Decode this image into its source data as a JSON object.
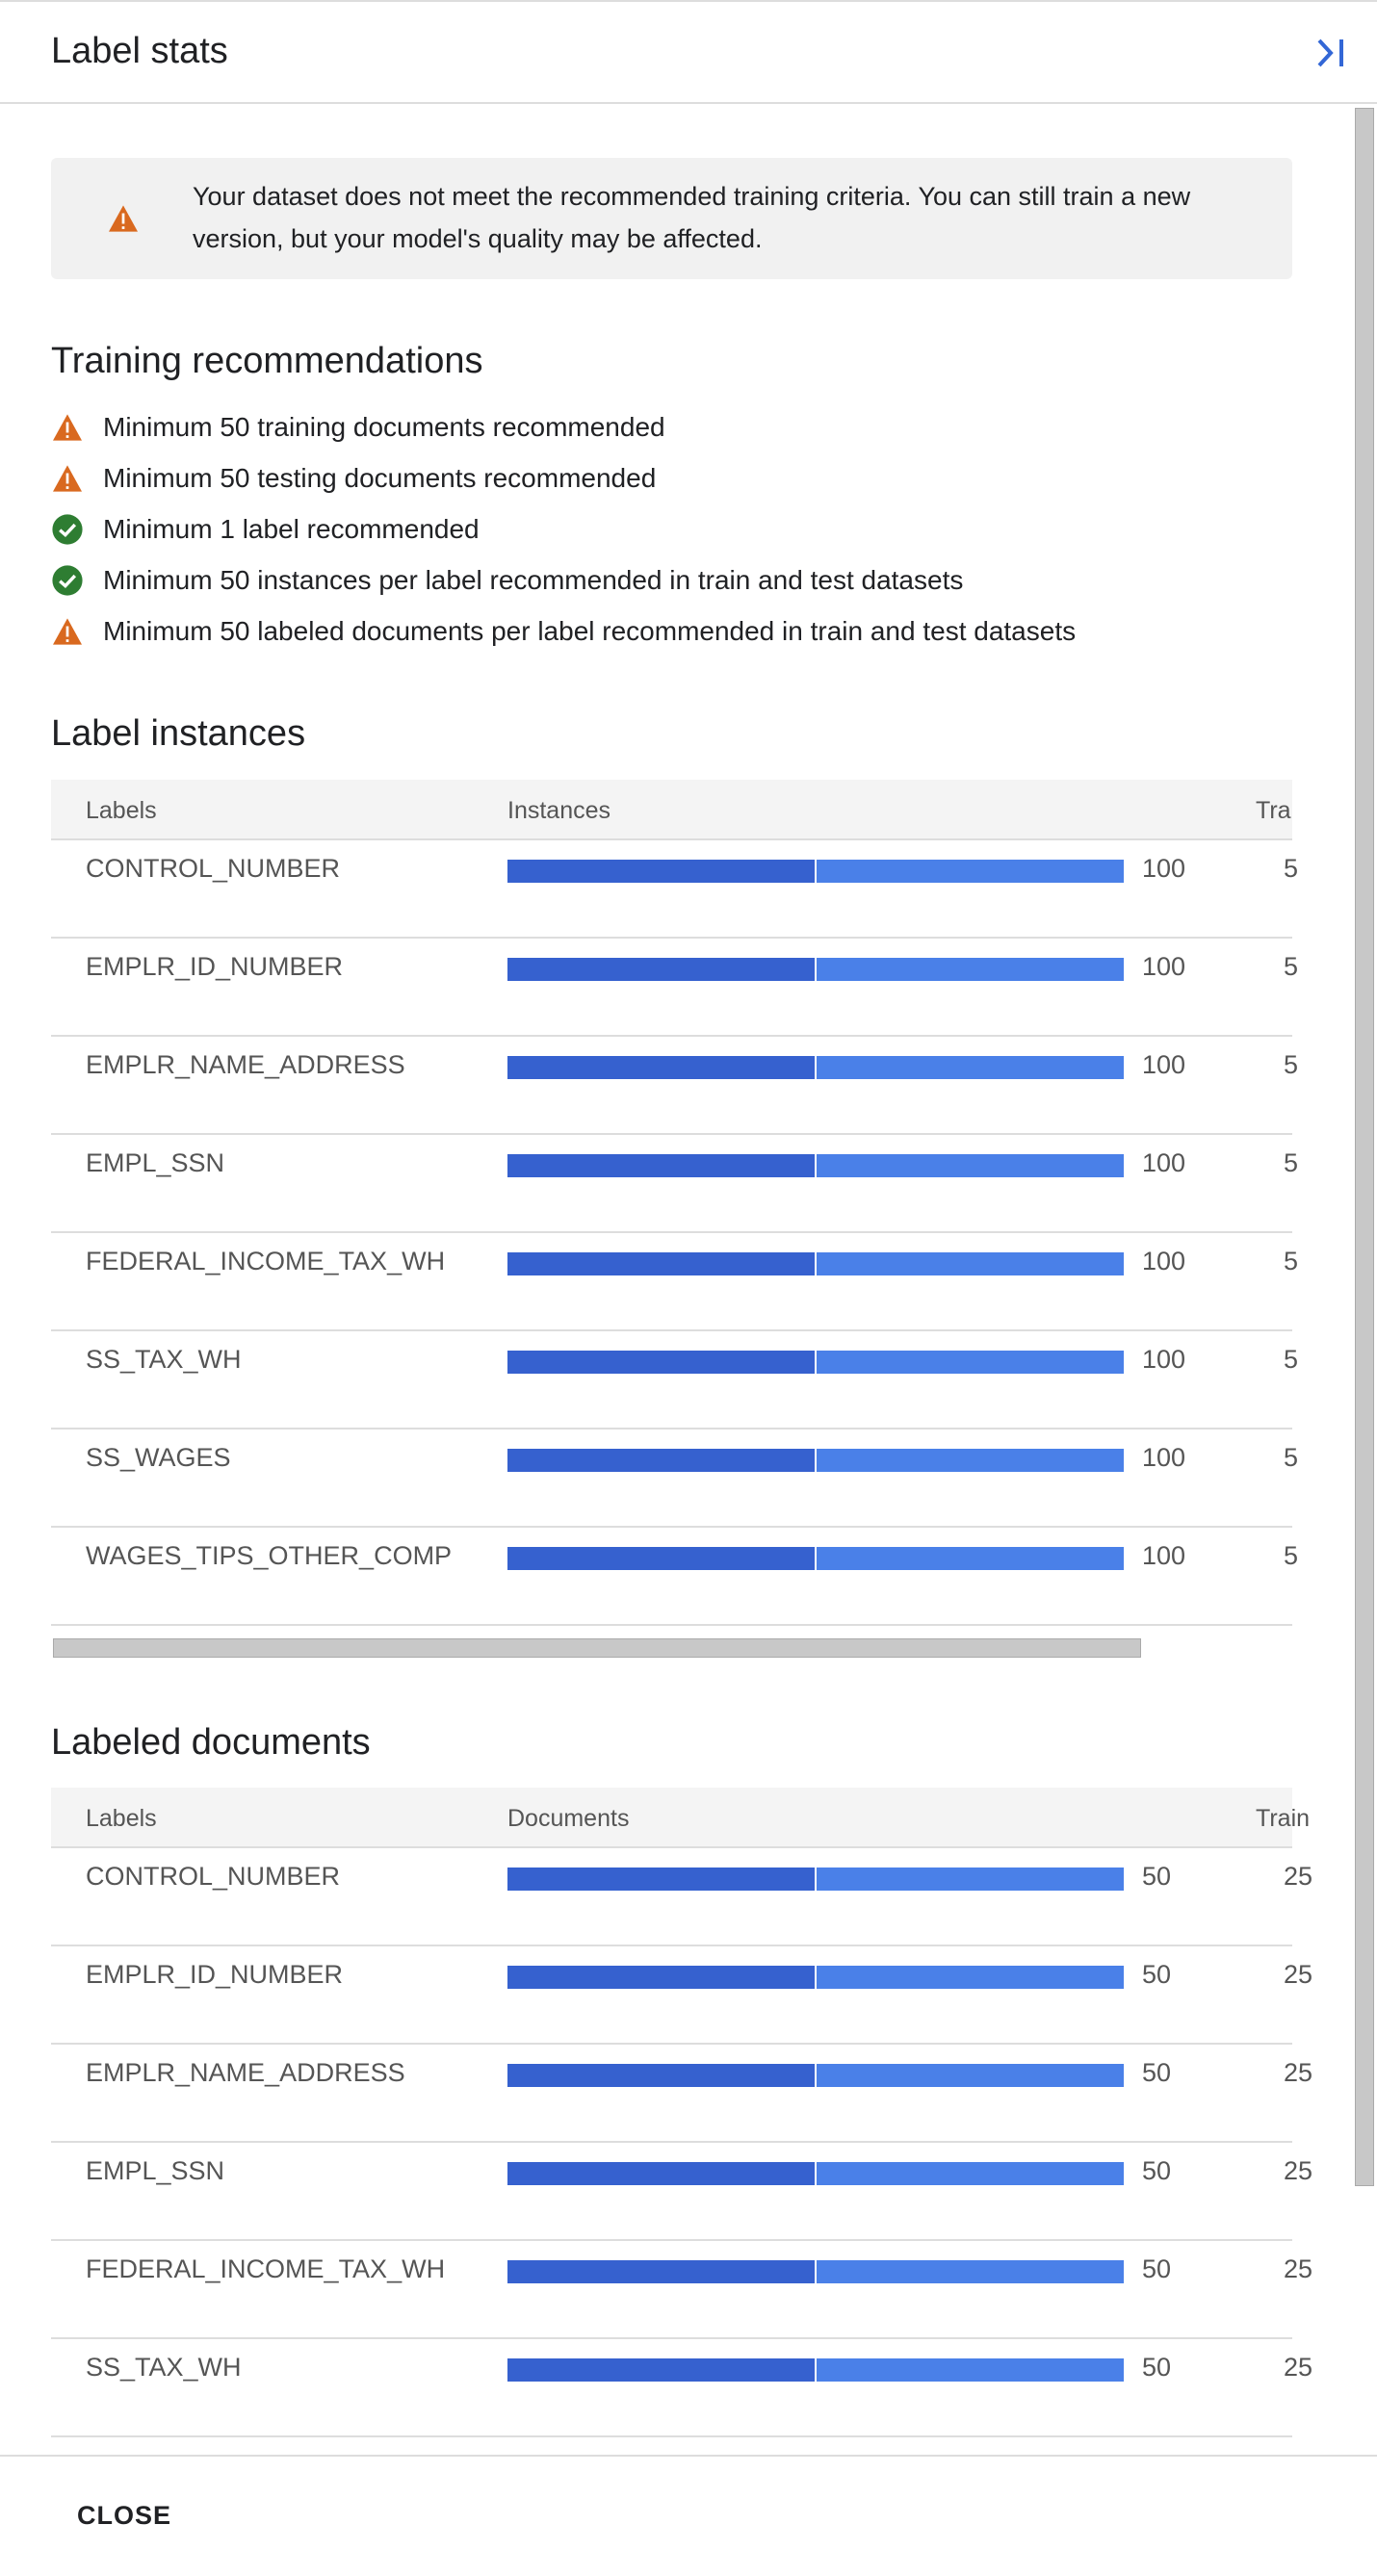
{
  "header": {
    "title": "Label stats"
  },
  "alert": {
    "text": "Your dataset does not meet the recommended training criteria. You can still train a new version, but your model's quality may be affected."
  },
  "recommendations": {
    "title": "Training recommendations",
    "items": [
      {
        "status": "warning",
        "text": "Minimum 50 training documents recommended"
      },
      {
        "status": "warning",
        "text": "Minimum 50 testing documents recommended"
      },
      {
        "status": "ok",
        "text": "Minimum 1 label recommended"
      },
      {
        "status": "ok",
        "text": "Minimum 50 instances per label recommended in train and test datasets"
      },
      {
        "status": "warning",
        "text": "Minimum 50 labeled documents per label recommended in train and test datasets"
      }
    ]
  },
  "label_instances": {
    "title": "Label instances",
    "columns": [
      "Labels",
      "Instances",
      "Tra"
    ],
    "rows": [
      {
        "label": "CONTROL_NUMBER",
        "value": 100,
        "train": 5
      },
      {
        "label": "EMPLR_ID_NUMBER",
        "value": 100,
        "train": 5
      },
      {
        "label": "EMPLR_NAME_ADDRESS",
        "value": 100,
        "train": 5
      },
      {
        "label": "EMPL_SSN",
        "value": 100,
        "train": 5
      },
      {
        "label": "FEDERAL_INCOME_TAX_WH",
        "value": 100,
        "train": 5
      },
      {
        "label": "SS_TAX_WH",
        "value": 100,
        "train": 5
      },
      {
        "label": "SS_WAGES",
        "value": 100,
        "train": 5
      },
      {
        "label": "WAGES_TIPS_OTHER_COMP",
        "value": 100,
        "train": 5
      }
    ]
  },
  "labeled_documents": {
    "title": "Labeled documents",
    "columns": [
      "Labels",
      "Documents",
      "Train"
    ],
    "rows": [
      {
        "label": "CONTROL_NUMBER",
        "value": 50,
        "train": 25
      },
      {
        "label": "EMPLR_ID_NUMBER",
        "value": 50,
        "train": 25
      },
      {
        "label": "EMPLR_NAME_ADDRESS",
        "value": 50,
        "train": 25
      },
      {
        "label": "EMPL_SSN",
        "value": 50,
        "train": 25
      },
      {
        "label": "FEDERAL_INCOME_TAX_WH",
        "value": 50,
        "train": 25
      },
      {
        "label": "SS_TAX_WH",
        "value": 50,
        "train": 25
      }
    ]
  },
  "footer": {
    "close": "CLOSE"
  }
}
